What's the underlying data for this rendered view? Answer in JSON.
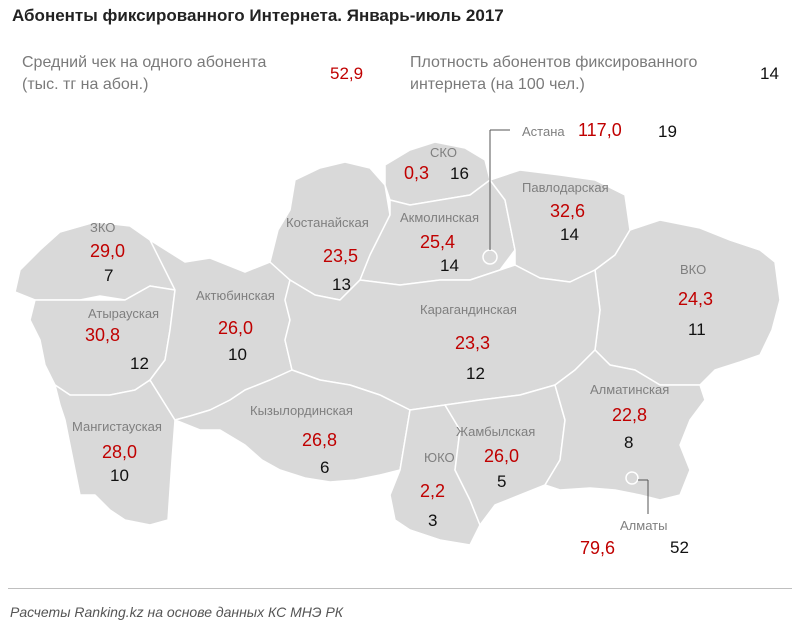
{
  "title": "Абоненты фиксированного Интернета. Январь-июль 2017",
  "legend": {
    "avg_check_label_1": "Средний чек на одного абонента",
    "avg_check_label_2": "(тыс. тг на абон.)",
    "avg_check_value": "52,9",
    "density_label_1": "Плотность абонентов фиксированного",
    "density_label_2": "интернета (на 100 чел.)",
    "density_value": "14"
  },
  "regions": [
    {
      "name": "Астана",
      "check": "117,0",
      "density": "19"
    },
    {
      "name": "СКО",
      "check": "0,3",
      "density": "16"
    },
    {
      "name": "Павлодарская",
      "check": "32,6",
      "density": "14"
    },
    {
      "name": "Костанайская",
      "check": "23,5",
      "density": "13"
    },
    {
      "name": "Акмолинская",
      "check": "25,4",
      "density": "14"
    },
    {
      "name": "ЗКО",
      "check": "29,0",
      "density": "7"
    },
    {
      "name": "ВКО",
      "check": "24,3",
      "density": "11"
    },
    {
      "name": "Атырауская",
      "check": "30,8",
      "density": "12"
    },
    {
      "name": "Актюбинская",
      "check": "26,0",
      "density": "10"
    },
    {
      "name": "Карагандинская",
      "check": "23,3",
      "density": "12"
    },
    {
      "name": "Алматинская",
      "check": "22,8",
      "density": "8"
    },
    {
      "name": "Мангистауская",
      "check": "28,0",
      "density": "10"
    },
    {
      "name": "Кызылординская",
      "check": "26,8",
      "density": "6"
    },
    {
      "name": "ЮКО",
      "check": "2,2",
      "density": "3"
    },
    {
      "name": "Жамбылская",
      "check": "26,0",
      "density": "5"
    },
    {
      "name": "Алматы",
      "check": "79,6",
      "density": "52"
    }
  ],
  "colors": {
    "check": "#c00000",
    "density": "#111111",
    "map_fill": "#d9d9d9",
    "border": "#ffffff"
  },
  "footer": "Расчеты Ranking.kz на основе данных КС МНЭ РК"
}
